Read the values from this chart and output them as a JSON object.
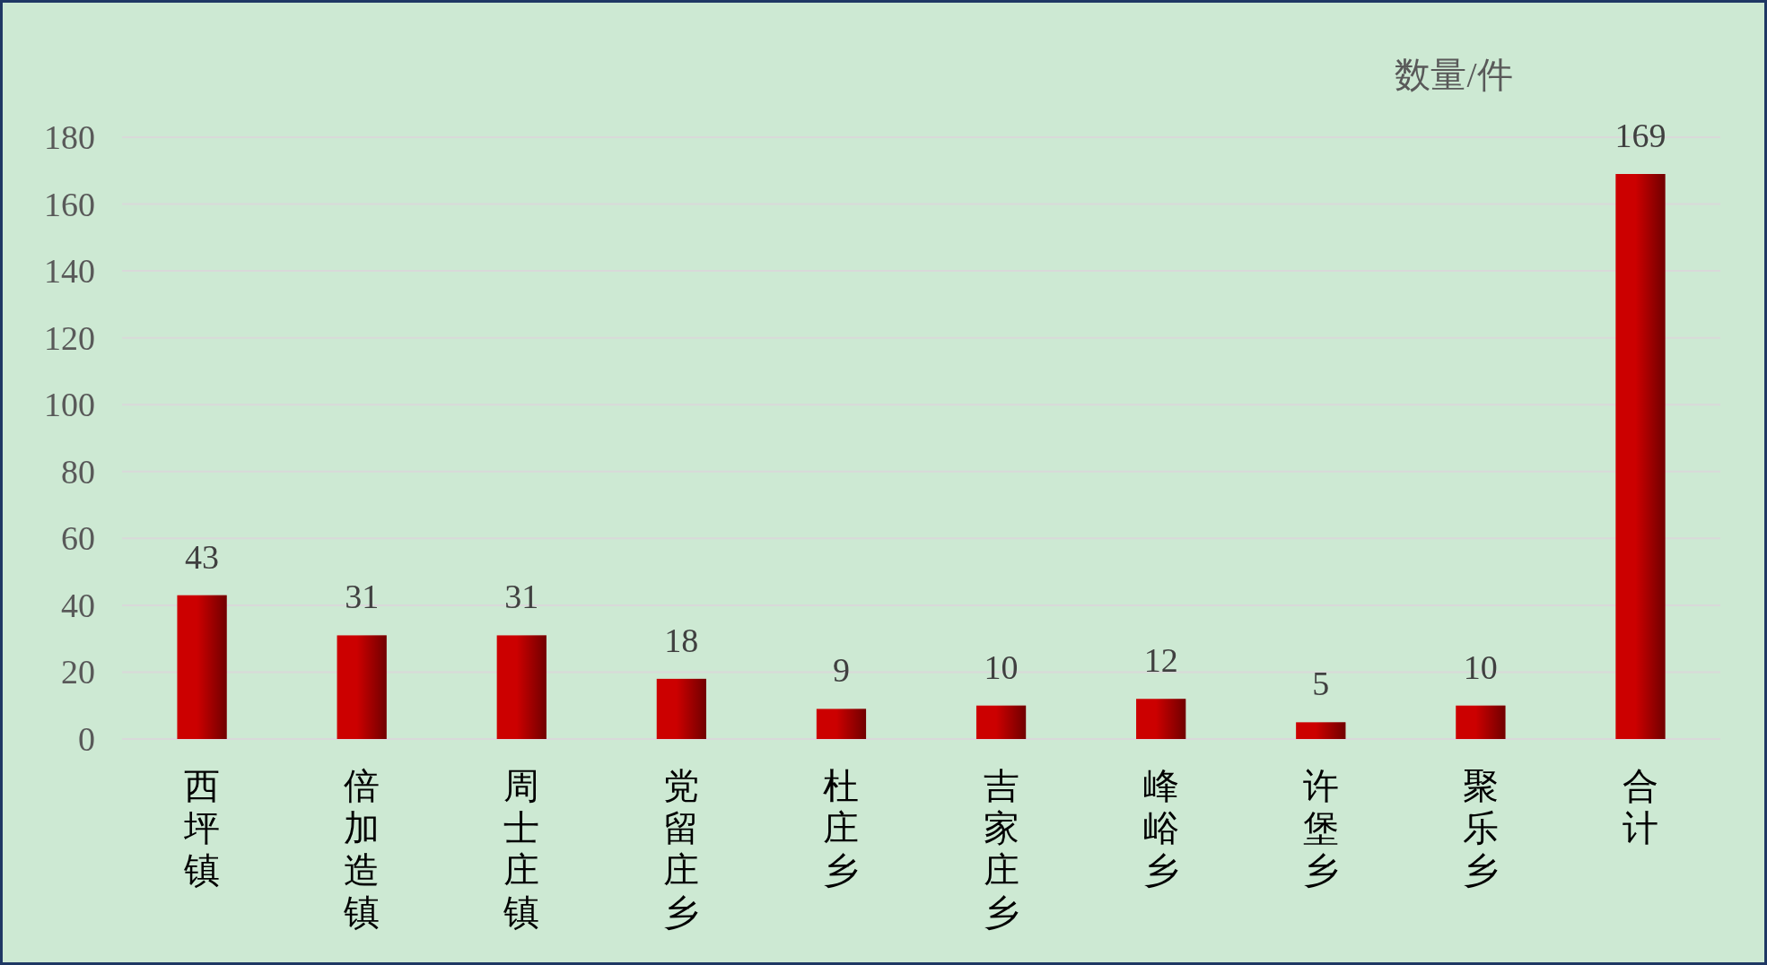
{
  "chart_data": {
    "type": "bar",
    "ylabel": "数量/件",
    "categories": [
      "西坪镇",
      "倍加造镇",
      "周士庄镇",
      "党留庄乡",
      "杜庄乡",
      "吉家庄乡",
      "峰峪乡",
      "许堡乡",
      "聚乐乡",
      "合计"
    ],
    "values": [
      43,
      31,
      31,
      18,
      9,
      10,
      12,
      5,
      10,
      169
    ],
    "color": "#cc0000",
    "ylim": [
      0,
      180
    ],
    "yticks": [
      0,
      20,
      40,
      60,
      80,
      100,
      120,
      140,
      160,
      180
    ],
    "grid": "y",
    "data_labels": true
  }
}
